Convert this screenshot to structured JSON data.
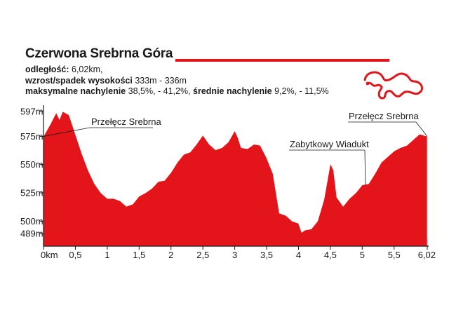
{
  "header": {
    "title": "Czerwona Srebrna Góra",
    "distance_label": "odległość:",
    "distance_value": " 6,02km,",
    "elev_label": "wzrost/spadek wysokości",
    "elev_value": " 333m - 336m",
    "maxslope_label": "maksymalne nachylenie",
    "maxslope_value": " 38,5%, - 41,2%, ",
    "avgslope_label": "średnie nachylenie",
    "avgslope_value": " 9,2%, - 11,5%"
  },
  "colors": {
    "profile": "#e3151b",
    "accent": "#e3151b",
    "text": "#1a1a1a"
  },
  "icons": {
    "route": "route-map-icon"
  },
  "chart_data": {
    "type": "area",
    "title": "",
    "xlabel": "",
    "ylabel": "",
    "xlim": [
      0,
      6.02
    ],
    "ylim": [
      489,
      597
    ],
    "x_ticks": [
      {
        "value": 0,
        "label": "0km"
      },
      {
        "value": 0.5,
        "label": "0,5"
      },
      {
        "value": 1,
        "label": "1"
      },
      {
        "value": 1.5,
        "label": "1,5"
      },
      {
        "value": 2,
        "label": "2"
      },
      {
        "value": 2.5,
        "label": "2,5"
      },
      {
        "value": 3,
        "label": "3"
      },
      {
        "value": 3.5,
        "label": "3,5"
      },
      {
        "value": 4,
        "label": "4"
      },
      {
        "value": 4.5,
        "label": "4,5"
      },
      {
        "value": 5,
        "label": "5"
      },
      {
        "value": 5.5,
        "label": "5,5"
      },
      {
        "value": 6.02,
        "label": "6,02"
      }
    ],
    "y_ticks": [
      {
        "value": 597,
        "label": "597m"
      },
      {
        "value": 575,
        "label": "575m"
      },
      {
        "value": 550,
        "label": "550m"
      },
      {
        "value": 525,
        "label": "525m"
      },
      {
        "value": 500,
        "label": "500m"
      },
      {
        "value": 489,
        "label": "489m"
      }
    ],
    "annotations": [
      {
        "label": "Przełęcz Srebrna",
        "x": 0.0,
        "y": 575
      },
      {
        "label": "Zabytkowy Wiadukt",
        "x": 5.05,
        "y": 532
      },
      {
        "label": "Przełęcz Srebrna",
        "x": 6.02,
        "y": 575
      }
    ],
    "x": [
      0,
      0.1,
      0.2,
      0.25,
      0.3,
      0.4,
      0.5,
      0.6,
      0.7,
      0.8,
      0.9,
      1.0,
      1.1,
      1.2,
      1.3,
      1.4,
      1.5,
      1.6,
      1.7,
      1.8,
      1.9,
      2.0,
      2.1,
      2.2,
      2.3,
      2.4,
      2.5,
      2.6,
      2.7,
      2.8,
      2.9,
      3.0,
      3.05,
      3.1,
      3.2,
      3.3,
      3.4,
      3.5,
      3.6,
      3.7,
      3.8,
      3.9,
      4.0,
      4.05,
      4.1,
      4.2,
      4.3,
      4.4,
      4.5,
      4.55,
      4.6,
      4.7,
      4.8,
      4.9,
      5.0,
      5.1,
      5.2,
      5.3,
      5.4,
      5.5,
      5.6,
      5.7,
      5.8,
      5.9,
      6.02
    ],
    "values": [
      575,
      585,
      596,
      590,
      597,
      594,
      577,
      560,
      545,
      533,
      525,
      520,
      520,
      518,
      513,
      515,
      522,
      525,
      529,
      535,
      536,
      543,
      552,
      559,
      561,
      568,
      576,
      568,
      563,
      565,
      570,
      580,
      574,
      565,
      564,
      568,
      567,
      556,
      542,
      507,
      505,
      500,
      498,
      490,
      492,
      493,
      500,
      519,
      551,
      545,
      521,
      513,
      520,
      525,
      532,
      533,
      542,
      552,
      557,
      562,
      565,
      567,
      572,
      577,
      575
    ]
  }
}
